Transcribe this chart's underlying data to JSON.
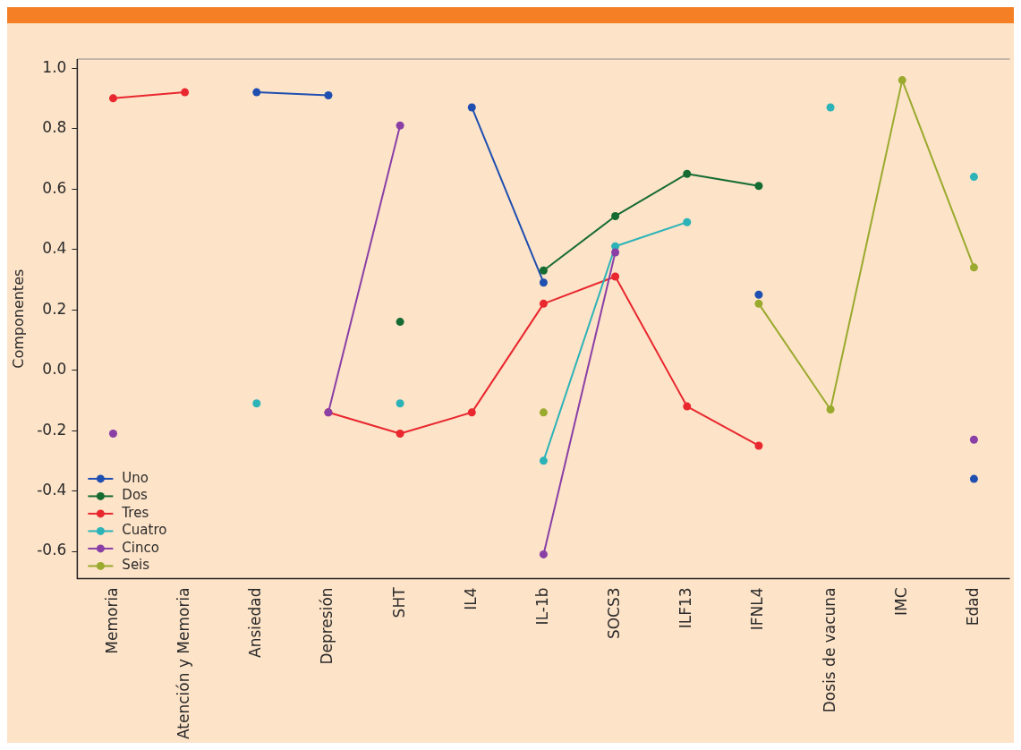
{
  "chart_data": {
    "type": "line",
    "ylabel": "Componentes",
    "categories": [
      "Memoria",
      "Atención y Memoria",
      "Ansiedad",
      "Depresión",
      "SHT",
      "IL4",
      "IL-1b",
      "SOCS3",
      "ILF13",
      "IFNL4",
      "Dosis de vacuna",
      "IMC",
      "Edad"
    ],
    "series": [
      {
        "name": "Uno",
        "color": "#1f4fb0",
        "values": [
          null,
          null,
          0.92,
          0.91,
          null,
          0.87,
          0.29,
          null,
          null,
          0.25,
          null,
          null,
          -0.36
        ]
      },
      {
        "name": "Dos",
        "color": "#156b32",
        "values": [
          null,
          null,
          null,
          null,
          0.16,
          null,
          0.33,
          0.51,
          0.65,
          0.61,
          null,
          null,
          null
        ]
      },
      {
        "name": "Tres",
        "color": "#e8272e",
        "values": [
          0.9,
          0.92,
          null,
          -0.14,
          -0.21,
          -0.14,
          0.22,
          0.31,
          -0.12,
          -0.25,
          null,
          null,
          null
        ]
      },
      {
        "name": "Cuatro",
        "color": "#2bb3b8",
        "values": [
          null,
          null,
          -0.11,
          null,
          -0.11,
          null,
          -0.3,
          0.41,
          0.49,
          null,
          0.87,
          null,
          0.64
        ]
      },
      {
        "name": "Cinco",
        "color": "#8a3fa6",
        "values": [
          -0.21,
          null,
          null,
          -0.14,
          0.81,
          null,
          -0.61,
          0.39,
          null,
          null,
          null,
          null,
          -0.23
        ]
      },
      {
        "name": "Seis",
        "color": "#9aaa2e",
        "values": [
          null,
          null,
          null,
          null,
          null,
          null,
          -0.14,
          null,
          null,
          0.22,
          -0.13,
          0.96,
          0.34
        ]
      }
    ],
    "ylim": [
      -0.69,
      1.03
    ],
    "yticks": [
      -0.6,
      -0.4,
      -0.2,
      {
        "value": 0,
        "label": "0.0"
      },
      0.2,
      0.4,
      0.6,
      0.8,
      {
        "value": 1,
        "label": "1.0"
      }
    ],
    "grid": false,
    "legend": "bottom left",
    "marker": "circle",
    "line_style": "solid"
  }
}
